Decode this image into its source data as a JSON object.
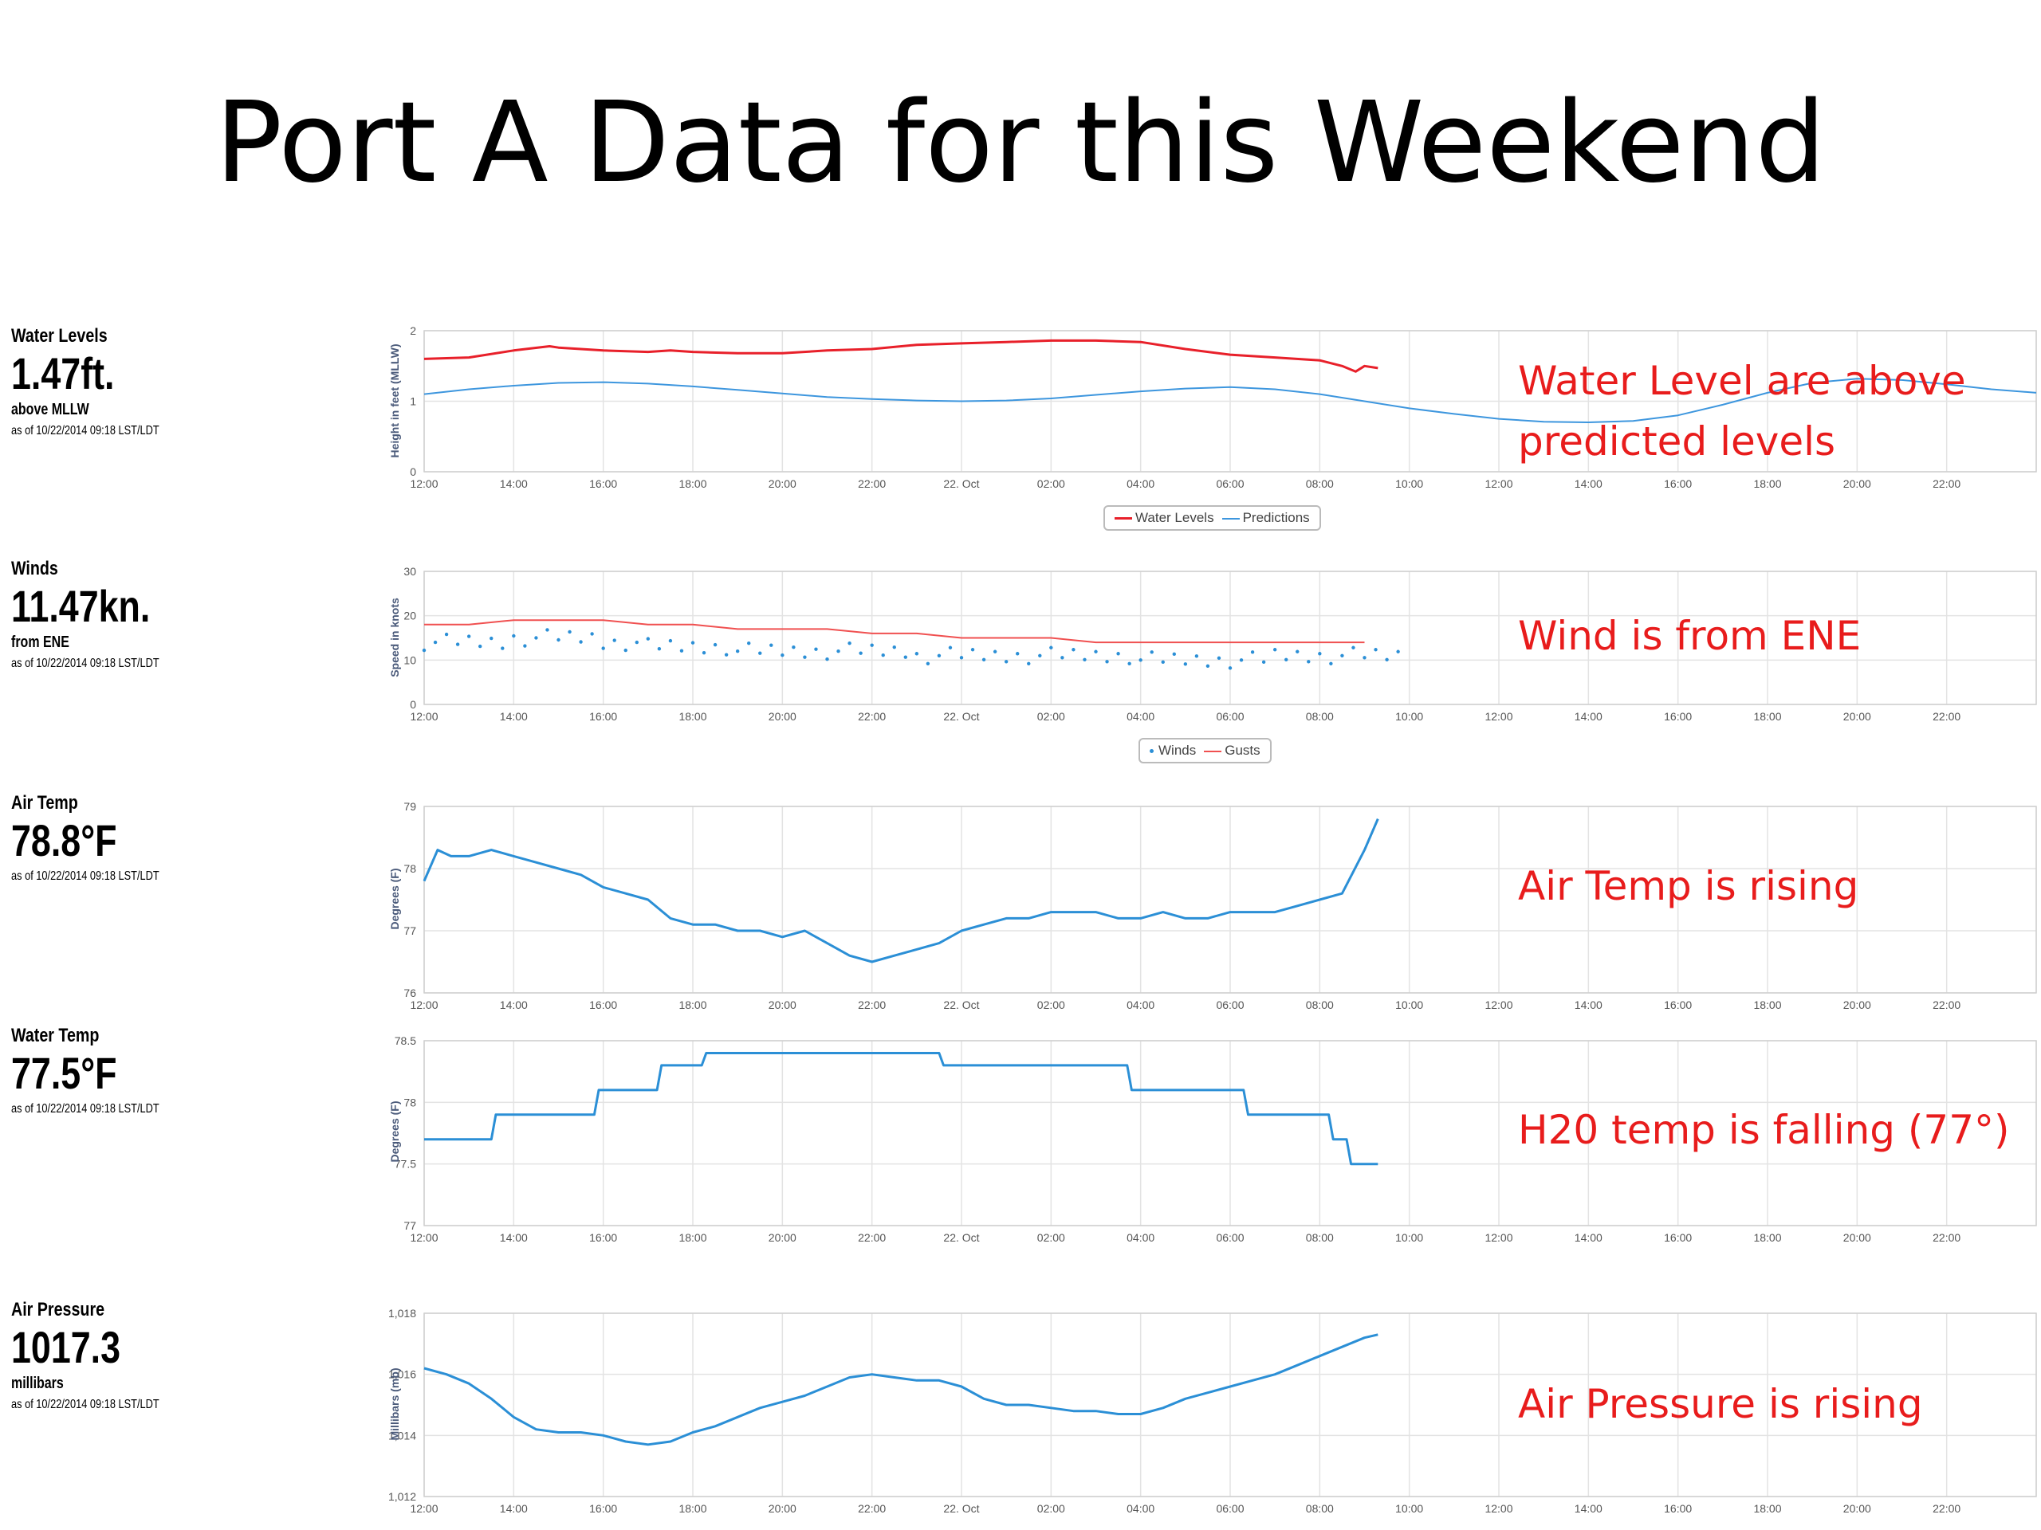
{
  "title": "Port A Data for this Weekend",
  "stats": [
    {
      "label": "Water Levels",
      "value": "1.47ft.",
      "sub": "above MLLW",
      "ts": "as of 10/22/2014 09:18 LST/LDT"
    },
    {
      "label": "Winds",
      "value": "11.47kn.",
      "sub": "from ENE",
      "ts": "as of 10/22/2014 09:18 LST/LDT"
    },
    {
      "label": "Air Temp",
      "value": "78.8°F",
      "sub": "",
      "ts": "as of 10/22/2014 09:18 LST/LDT"
    },
    {
      "label": "Water Temp",
      "value": "77.5°F",
      "sub": "",
      "ts": "as of 10/22/2014 09:18 LST/LDT"
    },
    {
      "label": "Air Pressure",
      "value": "1017.3",
      "sub": "millibars",
      "ts": "as of 10/22/2014 09:18 LST/LDT"
    }
  ],
  "notes": [
    "Water Level are above predicted levels",
    "Wind is from ENE",
    "Air Temp is rising",
    "H20 temp is falling (77°)",
    "Air Pressure is rising"
  ],
  "chart_data": [
    {
      "type": "line",
      "ylabel": "Height in feet (MLLW)",
      "ylim": [
        0,
        2
      ],
      "yticks": [
        "0",
        "1",
        "2"
      ],
      "xticks": [
        "12:00",
        "14:00",
        "16:00",
        "18:00",
        "20:00",
        "22:00",
        "22. Oct",
        "02:00",
        "04:00",
        "06:00",
        "08:00",
        "10:00",
        "12:00",
        "14:00",
        "16:00",
        "18:00",
        "20:00",
        "22:00"
      ],
      "grid": true,
      "legend": "bottom",
      "series": [
        {
          "name": "Water Levels",
          "color": "#e8202a",
          "style": "line",
          "x": [
            0,
            1,
            2,
            2.8,
            3,
            4,
            5,
            5.5,
            6,
            7,
            8,
            9,
            10,
            11,
            12,
            13,
            14,
            15,
            16,
            17,
            18,
            19,
            20,
            20.5,
            20.8,
            21,
            21.3
          ],
          "y": [
            1.6,
            1.62,
            1.72,
            1.78,
            1.76,
            1.72,
            1.7,
            1.72,
            1.7,
            1.68,
            1.68,
            1.72,
            1.74,
            1.8,
            1.82,
            1.84,
            1.86,
            1.86,
            1.84,
            1.74,
            1.66,
            1.62,
            1.58,
            1.5,
            1.42,
            1.5,
            1.47
          ]
        },
        {
          "name": "Predictions",
          "color": "#3d96de",
          "style": "line",
          "x": [
            0,
            1,
            2,
            3,
            4,
            5,
            6,
            7,
            8,
            9,
            10,
            11,
            12,
            13,
            14,
            15,
            16,
            17,
            18,
            19,
            20,
            21,
            22,
            23,
            24,
            25,
            26,
            27,
            28,
            29,
            30,
            31,
            32,
            33,
            34,
            35,
            36
          ],
          "y": [
            1.1,
            1.17,
            1.22,
            1.26,
            1.27,
            1.25,
            1.21,
            1.16,
            1.11,
            1.06,
            1.03,
            1.01,
            1.0,
            1.01,
            1.04,
            1.09,
            1.14,
            1.18,
            1.2,
            1.17,
            1.1,
            1.0,
            0.9,
            0.82,
            0.75,
            0.71,
            0.7,
            0.72,
            0.8,
            0.95,
            1.12,
            1.26,
            1.32,
            1.3,
            1.24,
            1.17,
            1.12
          ]
        }
      ]
    },
    {
      "type": "scatter",
      "ylabel": "Speed in knots",
      "ylim": [
        0,
        30
      ],
      "yticks": [
        "0",
        "10",
        "20",
        "30"
      ],
      "xticks": [
        "12:00",
        "14:00",
        "16:00",
        "18:00",
        "20:00",
        "22:00",
        "22. Oct",
        "02:00",
        "04:00",
        "06:00",
        "08:00",
        "10:00",
        "12:00",
        "14:00",
        "16:00",
        "18:00",
        "20:00",
        "22:00"
      ],
      "grid": true,
      "legend": "bottom",
      "series": [
        {
          "name": "Winds",
          "color": "#2b8fd6",
          "style": "dots",
          "x": [
            0,
            1,
            2,
            3,
            4,
            5,
            6,
            7,
            8,
            9,
            10,
            11,
            12,
            13,
            14,
            15,
            16,
            17,
            18,
            19,
            20,
            21
          ],
          "y": [
            14,
            14,
            15,
            15,
            14,
            13,
            13,
            12,
            12,
            12,
            12,
            11,
            11,
            11,
            11,
            11,
            10,
            10,
            10,
            11,
            11,
            11
          ]
        },
        {
          "name": "Gusts",
          "color": "#f05050",
          "style": "line",
          "x": [
            0,
            1,
            2,
            3,
            4,
            5,
            6,
            7,
            8,
            9,
            10,
            11,
            12,
            13,
            14,
            15,
            16,
            17,
            18,
            19,
            20,
            21
          ],
          "y": [
            18,
            18,
            19,
            19,
            19,
            18,
            18,
            17,
            17,
            17,
            16,
            16,
            15,
            15,
            15,
            14,
            14,
            14,
            14,
            14,
            14,
            14
          ]
        }
      ]
    },
    {
      "type": "line",
      "ylabel": "Degrees (F)",
      "ylim": [
        76,
        79
      ],
      "yticks": [
        "76",
        "77",
        "78",
        "79"
      ],
      "xticks": [
        "12:00",
        "14:00",
        "16:00",
        "18:00",
        "20:00",
        "22:00",
        "22. Oct",
        "02:00",
        "04:00",
        "06:00",
        "08:00",
        "10:00",
        "12:00",
        "14:00",
        "16:00",
        "18:00",
        "20:00",
        "22:00"
      ],
      "grid": true,
      "series": [
        {
          "name": "",
          "color": "#2b8fd6",
          "style": "line",
          "x": [
            0,
            0.3,
            0.6,
            1,
            1.5,
            2,
            2.5,
            3,
            3.5,
            4,
            4.5,
            5,
            5.5,
            6,
            6.5,
            7,
            7.5,
            8,
            8.5,
            9,
            9.5,
            10,
            10.5,
            11,
            11.5,
            12,
            12.5,
            13,
            13.5,
            14,
            14.5,
            15,
            15.5,
            16,
            16.5,
            17,
            17.5,
            18,
            18.5,
            19,
            19.5,
            20,
            20.5,
            21,
            21.3
          ],
          "y": [
            77.8,
            78.3,
            78.2,
            78.2,
            78.3,
            78.2,
            78.1,
            78.0,
            77.9,
            77.7,
            77.6,
            77.5,
            77.2,
            77.1,
            77.1,
            77.0,
            77.0,
            76.9,
            77.0,
            76.8,
            76.6,
            76.5,
            76.6,
            76.7,
            76.8,
            77.0,
            77.1,
            77.2,
            77.2,
            77.3,
            77.3,
            77.3,
            77.2,
            77.2,
            77.3,
            77.2,
            77.2,
            77.3,
            77.3,
            77.3,
            77.4,
            77.5,
            77.6,
            78.3,
            78.8
          ]
        }
      ]
    },
    {
      "type": "line",
      "ylabel": "Degrees (F)",
      "ylim": [
        77,
        78.5
      ],
      "yticks": [
        "77",
        "77.5",
        "78",
        "78.5"
      ],
      "xticks": [
        "12:00",
        "14:00",
        "16:00",
        "18:00",
        "20:00",
        "22:00",
        "22. Oct",
        "02:00",
        "04:00",
        "06:00",
        "08:00",
        "10:00",
        "12:00",
        "14:00",
        "16:00",
        "18:00",
        "20:00",
        "22:00"
      ],
      "grid": true,
      "series": [
        {
          "name": "",
          "color": "#2b8fd6",
          "style": "step",
          "x": [
            0,
            1.5,
            1.6,
            3.8,
            3.9,
            5.2,
            5.3,
            6.2,
            6.3,
            11.5,
            11.6,
            15.7,
            15.8,
            18.3,
            18.4,
            20.2,
            20.3,
            20.6,
            20.7,
            21.3
          ],
          "y": [
            77.7,
            77.7,
            77.9,
            77.9,
            78.1,
            78.1,
            78.3,
            78.3,
            78.4,
            78.4,
            78.3,
            78.3,
            78.1,
            78.1,
            77.9,
            77.9,
            77.7,
            77.7,
            77.5,
            77.5
          ]
        }
      ]
    },
    {
      "type": "line",
      "ylabel": "Millibars (mb)",
      "ylim": [
        1012,
        1018
      ],
      "yticks": [
        "1,012",
        "1,014",
        "1,016",
        "1,018"
      ],
      "xticks": [
        "12:00",
        "14:00",
        "16:00",
        "18:00",
        "20:00",
        "22:00",
        "22. Oct",
        "02:00",
        "04:00",
        "06:00",
        "08:00",
        "10:00",
        "12:00",
        "14:00",
        "16:00",
        "18:00",
        "20:00",
        "22:00"
      ],
      "grid": true,
      "series": [
        {
          "name": "",
          "color": "#2b8fd6",
          "style": "line",
          "x": [
            0,
            0.5,
            1,
            1.5,
            2,
            2.5,
            3,
            3.5,
            4,
            4.5,
            5,
            5.5,
            6,
            6.5,
            7,
            7.5,
            8,
            8.5,
            9,
            9.5,
            10,
            10.5,
            11,
            11.5,
            12,
            12.5,
            13,
            13.5,
            14,
            14.5,
            15,
            15.5,
            16,
            16.5,
            17,
            17.5,
            18,
            18.5,
            19,
            19.5,
            20,
            20.5,
            21,
            21.3
          ],
          "y": [
            1016.2,
            1016.0,
            1015.7,
            1015.2,
            1014.6,
            1014.2,
            1014.1,
            1014.1,
            1014.0,
            1013.8,
            1013.7,
            1013.8,
            1014.1,
            1014.3,
            1014.6,
            1014.9,
            1015.1,
            1015.3,
            1015.6,
            1015.9,
            1016.0,
            1015.9,
            1015.8,
            1015.8,
            1015.6,
            1015.2,
            1015.0,
            1015.0,
            1014.9,
            1014.8,
            1014.8,
            1014.7,
            1014.7,
            1014.9,
            1015.2,
            1015.4,
            1015.6,
            1015.8,
            1016.0,
            1016.3,
            1016.6,
            1016.9,
            1017.2,
            1017.3
          ]
        }
      ]
    }
  ]
}
